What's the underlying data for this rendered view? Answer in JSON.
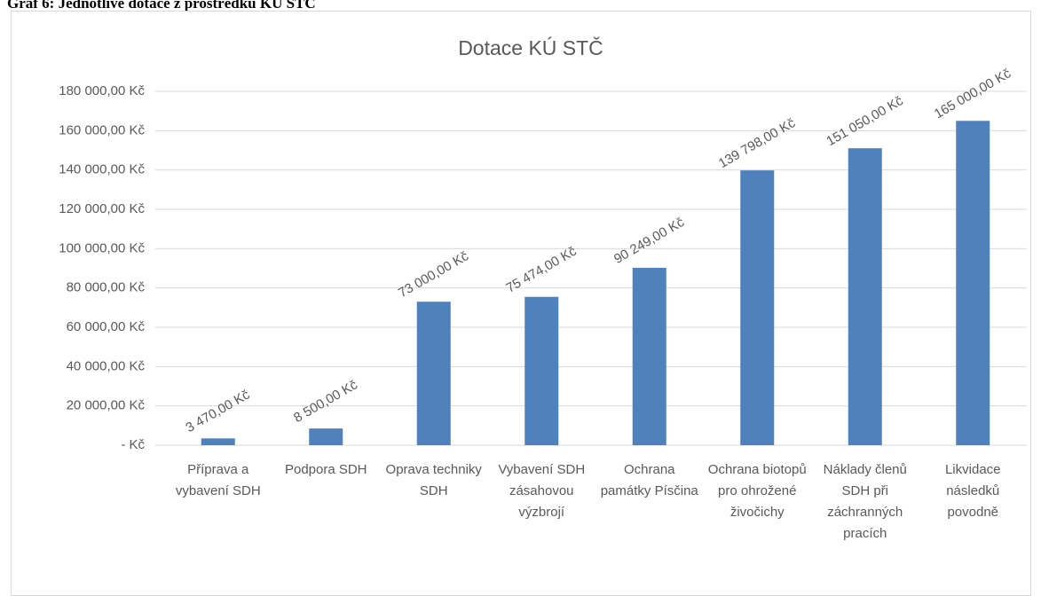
{
  "caption": "Graf 6: Jednotlivé dotace z prostředků KÚ STČ",
  "chart_data": {
    "type": "bar",
    "title": "Dotace KÚ STČ",
    "categories": [
      "Příprava a vybavení SDH",
      "Podpora SDH",
      "Oprava techniky SDH",
      "Vybavení SDH zásahovou výzbrojí",
      "Ochrana památky Písčina",
      "Ochrana biotopů pro ohrožené živočichy",
      "Náklady členů SDH při záchranných pracích",
      "Likvidace následků povodně"
    ],
    "values": [
      3470,
      8500,
      73000,
      75474,
      90249,
      139798,
      151050,
      165000
    ],
    "value_labels": [
      "3 470,00 Kč",
      "8 500,00 Kč",
      "73 000,00 Kč",
      "75 474,00 Kč",
      "90 249,00 Kč",
      "139 798,00 Kč",
      "151 050,00 Kč",
      "165 000,00 Kč"
    ],
    "color": "#4f81bd",
    "ylim": [
      0,
      180000
    ],
    "yticks": [
      {
        "value": 0,
        "label": "-   Kč"
      },
      {
        "value": 20000,
        "label": "20 000,00 Kč"
      },
      {
        "value": 40000,
        "label": "40 000,00 Kč"
      },
      {
        "value": 60000,
        "label": "60 000,00 Kč"
      },
      {
        "value": 80000,
        "label": "80 000,00 Kč"
      },
      {
        "value": 100000,
        "label": "100 000,00 Kč"
      },
      {
        "value": 120000,
        "label": "120 000,00 Kč"
      },
      {
        "value": 140000,
        "label": "140 000,00 Kč"
      },
      {
        "value": 160000,
        "label": "160 000,00 Kč"
      },
      {
        "value": 180000,
        "label": "180 000,00 Kč"
      }
    ],
    "grid": true
  }
}
